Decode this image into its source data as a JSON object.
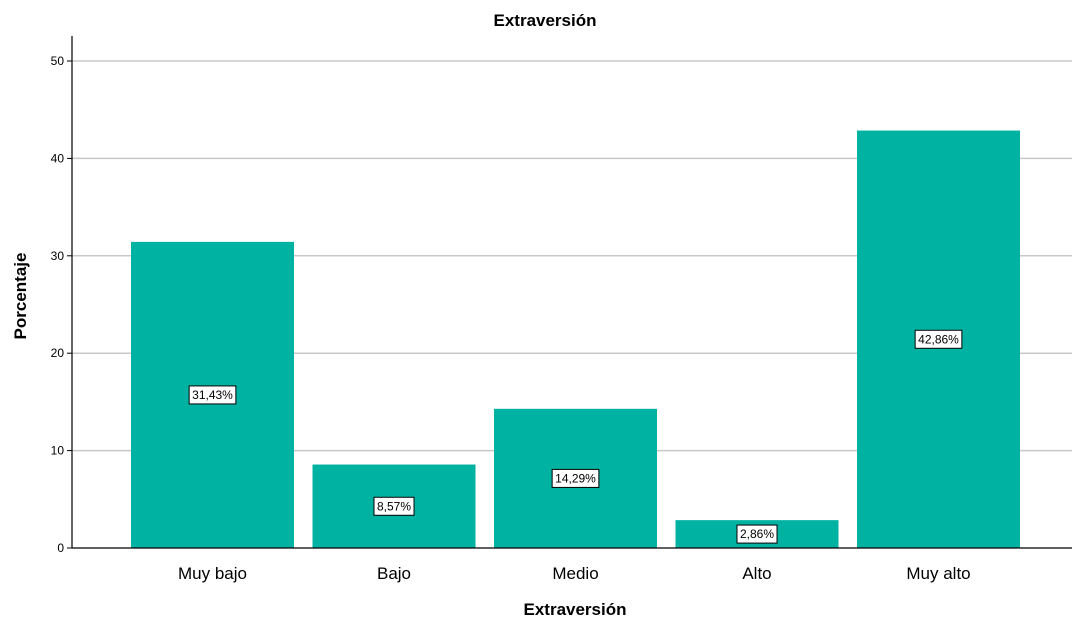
{
  "chart_data": {
    "type": "bar",
    "title": "Extraversión",
    "xlabel": "Extraversión",
    "ylabel": "Porcentaje",
    "categories": [
      "Muy bajo",
      "Bajo",
      "Medio",
      "Alto",
      "Muy alto"
    ],
    "values": [
      31.43,
      8.57,
      14.29,
      2.86,
      42.86
    ],
    "data_labels": [
      "31,43%",
      "8,57%",
      "14,29%",
      "2,86%",
      "42,86%"
    ],
    "ylim": [
      0,
      50
    ],
    "yticks": [
      0,
      10,
      20,
      30,
      40,
      50
    ],
    "grid": true,
    "bar_color": "#00b2a1",
    "legend": "none"
  }
}
